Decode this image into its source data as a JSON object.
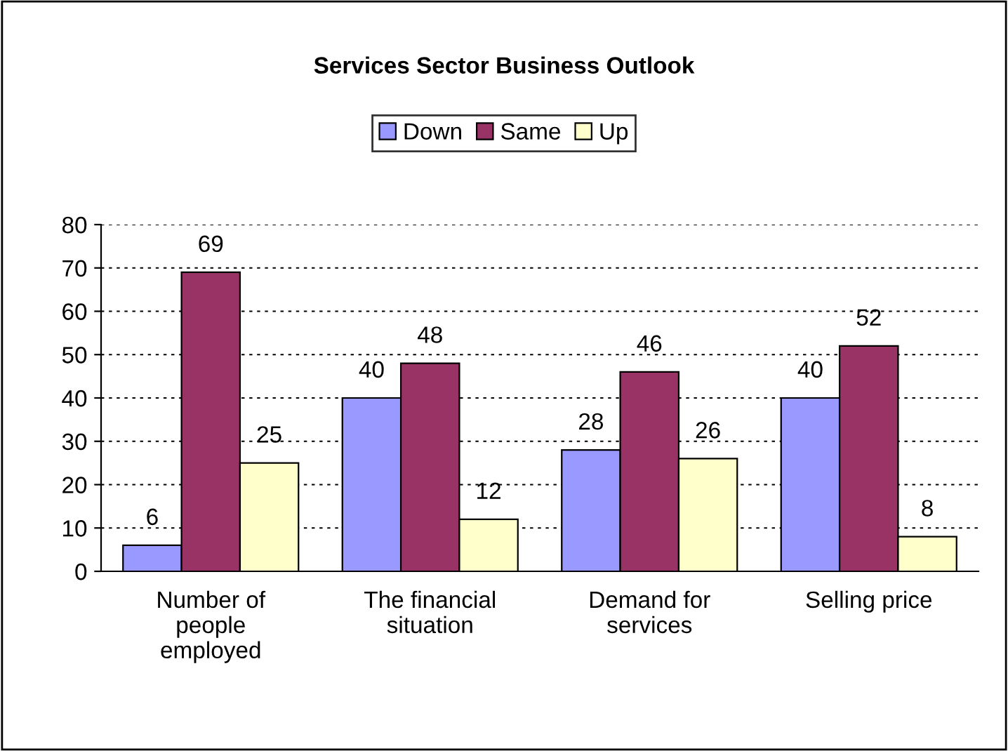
{
  "chart_data": {
    "type": "bar",
    "title": "Services Sector Business Outlook",
    "categories": [
      "Number of\npeople\nemployed",
      "The financial\nsituation",
      "Demand for\nservices",
      "Selling price"
    ],
    "series": [
      {
        "name": "Down",
        "color": "#9999ff",
        "values": [
          6,
          40,
          28,
          40
        ]
      },
      {
        "name": "Same",
        "color": "#993366",
        "values": [
          69,
          48,
          46,
          52
        ]
      },
      {
        "name": "Up",
        "color": "#ffffcc",
        "values": [
          25,
          12,
          26,
          8
        ]
      }
    ],
    "ylim": [
      0,
      80
    ],
    "yticks": [
      0,
      10,
      20,
      30,
      40,
      50,
      60,
      70,
      80
    ],
    "grid": "y",
    "legend": "top",
    "data_labels": true
  }
}
